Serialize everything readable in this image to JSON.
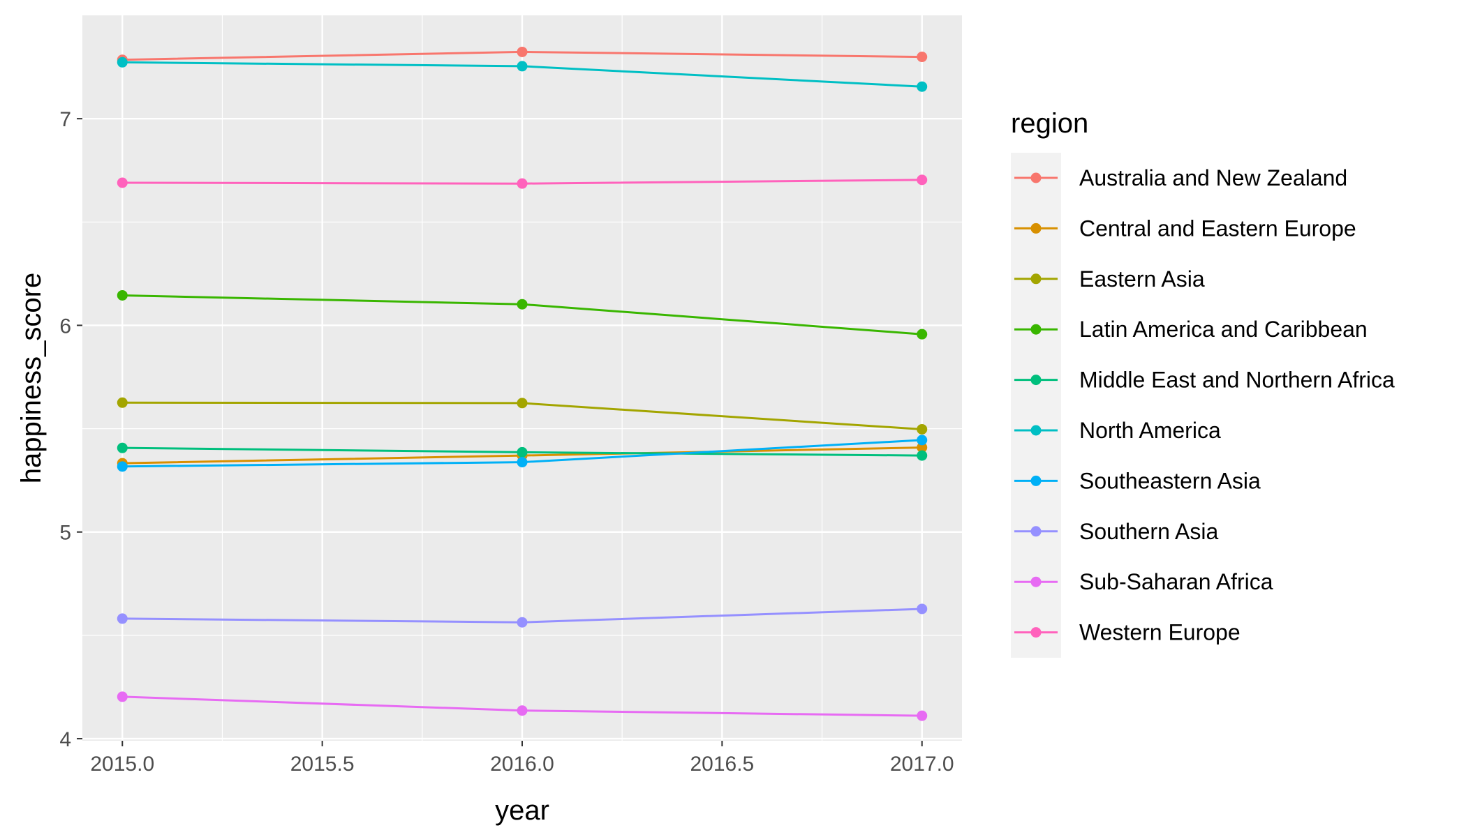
{
  "chart_data": {
    "type": "line",
    "title": "",
    "xlabel": "year",
    "ylabel": "happiness_score",
    "x": [
      2015,
      2016,
      2017
    ],
    "xlim": [
      2014.9,
      2017.1
    ],
    "ylim": [
      3.99,
      7.5
    ],
    "x_ticks": [
      2015.0,
      2015.5,
      2016.0,
      2016.5,
      2017.0
    ],
    "x_tick_labels": [
      "2015.0",
      "2015.5",
      "2016.0",
      "2016.5",
      "2017.0"
    ],
    "y_ticks": [
      4,
      5,
      6,
      7
    ],
    "y_tick_labels": [
      "4",
      "5",
      "6",
      "7"
    ],
    "grid": true,
    "legend": {
      "title": "region",
      "position": "right"
    },
    "series": [
      {
        "name": "Australia and New Zealand",
        "color": "#F8766D",
        "values": [
          7.285,
          7.323,
          7.299
        ]
      },
      {
        "name": "Central and Eastern Europe",
        "color": "#D89000",
        "values": [
          5.333,
          5.37,
          5.409
        ]
      },
      {
        "name": "Eastern Asia",
        "color": "#A3A500",
        "values": [
          5.626,
          5.624,
          5.497
        ]
      },
      {
        "name": "Latin America and Caribbean",
        "color": "#39B600",
        "values": [
          6.145,
          6.102,
          5.957
        ]
      },
      {
        "name": "Middle East and Northern Africa",
        "color": "#00BF7D",
        "values": [
          5.407,
          5.386,
          5.37
        ]
      },
      {
        "name": "North America",
        "color": "#00BFC4",
        "values": [
          7.273,
          7.254,
          7.155
        ]
      },
      {
        "name": "Southeastern Asia",
        "color": "#00B0F6",
        "values": [
          5.317,
          5.338,
          5.445
        ]
      },
      {
        "name": "Southern Asia",
        "color": "#9590FF",
        "values": [
          4.581,
          4.563,
          4.628
        ]
      },
      {
        "name": "Sub-Saharan Africa",
        "color": "#E76BF3",
        "values": [
          4.203,
          4.136,
          4.111
        ]
      },
      {
        "name": "Western Europe",
        "color": "#FF62BC",
        "values": [
          6.69,
          6.686,
          6.704
        ]
      }
    ]
  }
}
